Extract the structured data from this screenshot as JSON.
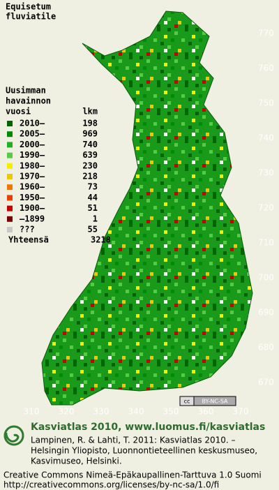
{
  "title": [
    "Equisetum",
    "fluviatile"
  ],
  "legend": {
    "heading": [
      "Uusimman",
      "havainnon",
      "vuosi"
    ],
    "count_heading": "lkm",
    "rows": [
      {
        "label": "2010–",
        "count": 198,
        "color": "#006400"
      },
      {
        "label": "2005–",
        "count": 969,
        "color": "#008c00"
      },
      {
        "label": "2000–",
        "count": 740,
        "color": "#22b022"
      },
      {
        "label": "1990–",
        "count": 639,
        "color": "#55cc44"
      },
      {
        "label": "1980–",
        "count": 230,
        "color": "#f0f000"
      },
      {
        "label": "1970–",
        "count": 218,
        "color": "#f0c800"
      },
      {
        "label": "1960–",
        "count": 73,
        "color": "#f07800"
      },
      {
        "label": "1950–",
        "count": 44,
        "color": "#e84000"
      },
      {
        "label": "1900–",
        "count": 51,
        "color": "#c80000"
      },
      {
        "label": "–1899",
        "count": 1,
        "color": "#780000"
      },
      {
        "label": "???",
        "count": 55,
        "color": "#c8c8c8"
      }
    ],
    "total_label": "Yhteensä",
    "total": 3218
  },
  "grid_labels": {
    "northing": [
      770,
      760,
      750,
      740,
      730,
      720,
      710,
      700,
      690,
      680,
      670
    ],
    "easting": [
      310,
      320,
      330,
      340,
      350,
      360,
      370
    ]
  },
  "badge": "BY-NC-SA",
  "footer": {
    "site": "Kasviatlas 2010, www.luomus.fi/kasviatlas",
    "citation": [
      "Lampinen, R. & Lahti, T. 2011: Kasviatlas 2010. –",
      "Helsingin Yliopisto, Luonnontieteellinen keskusmuseo,",
      "Kasvimuseo, Helsinki."
    ],
    "license": [
      "Creative Commons Nimeä-Epäkaupallinen-Tarttuva 1.0 Suomi",
      "http://creativecommons.org/licenses/by-nc-sa/1.0/fi"
    ]
  }
}
